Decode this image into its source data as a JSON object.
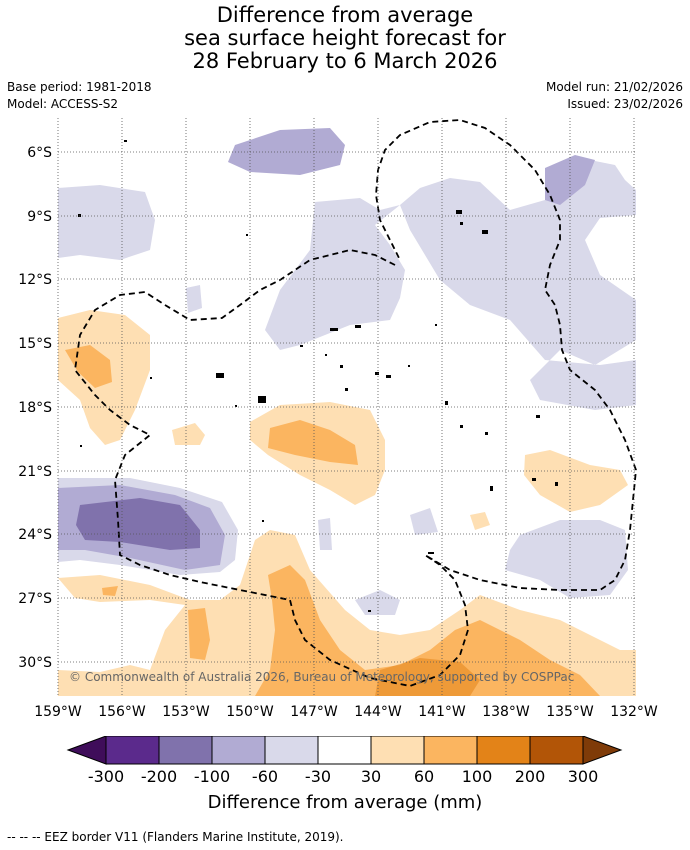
{
  "title": {
    "line1": "Difference from average",
    "line2": "sea surface height forecast for",
    "line3": "28 February to 6 March 2026"
  },
  "meta": {
    "base_period": "Base period: 1981-2018",
    "model": "Model: ACCESS-S2",
    "model_run": "Model run: 21/02/2026",
    "issued": "Issued: 23/02/2026"
  },
  "map": {
    "lat_labels": [
      "6°S",
      "9°S",
      "12°S",
      "15°S",
      "18°S",
      "21°S",
      "24°S",
      "27°S",
      "30°S"
    ],
    "lon_labels": [
      "159°W",
      "156°W",
      "153°W",
      "150°W",
      "147°W",
      "144°W",
      "141°W",
      "138°W",
      "135°W",
      "132°W"
    ],
    "copyright": "© Commonwealth of Australia 2026, Bureau of Meteorology, supported by COSPPac"
  },
  "colorbar": {
    "ticks": [
      "-300",
      "-200",
      "-100",
      "-60",
      "-30",
      "30",
      "60",
      "100",
      "200",
      "300"
    ],
    "colors": {
      "below": "#3f0d5a",
      "c1": "#5b2a8c",
      "c2": "#8072ac",
      "c3": "#b1abd3",
      "c4": "#d9d9ea",
      "c5": "#ffffff",
      "c6": "#fedfb3",
      "c7": "#fbb560",
      "c8": "#e38318",
      "c9": "#b25507",
      "above": "#7f3b08"
    },
    "label": "Difference from average (mm)"
  },
  "footer": "--  --  -- EEZ border V11 (Flanders Marine Institute, 2019)."
}
